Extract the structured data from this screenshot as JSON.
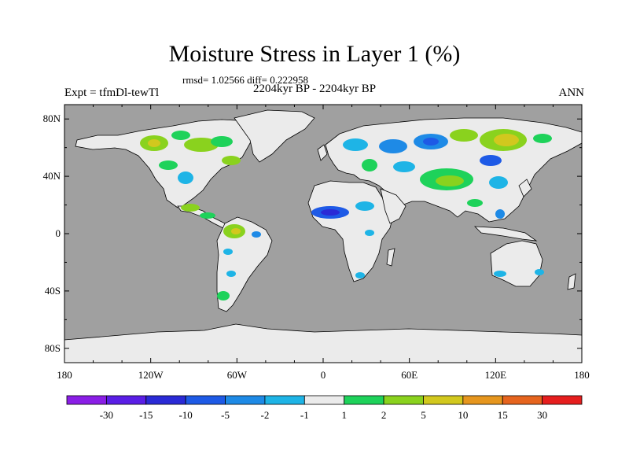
{
  "map": {
    "title": "Moisture Stress in Layer 1 (%)",
    "stats": "rmsd= 1.02566 diff= 0.222958",
    "period": "2204kyr BP - 2204kyr BP",
    "experiment": "Expt = tfmDl-tewTl",
    "season": "ANN",
    "lat_ticks": [
      "80N",
      "40N",
      "0",
      "40S",
      "80S"
    ],
    "lon_ticks": [
      "180",
      "120W",
      "60W",
      "0",
      "60E",
      "120E",
      "180"
    ],
    "ocean_color": "#a0a0a0",
    "land_color": "#ebebeb",
    "coast_color": "#000000"
  },
  "colorbar": {
    "labels": [
      "-30",
      "-15",
      "-10",
      "-5",
      "-2",
      "-1",
      "1",
      "2",
      "5",
      "10",
      "15",
      "30"
    ],
    "colors": [
      "#8a1ee6",
      "#5a1ee6",
      "#2a2ad6",
      "#1e5ae6",
      "#1e8ae6",
      "#1eb4e6",
      "#ebebeb",
      "#1ed25a",
      "#8ad21e",
      "#d2c81e",
      "#e6961e",
      "#e6641e",
      "#e61e1e"
    ]
  }
}
